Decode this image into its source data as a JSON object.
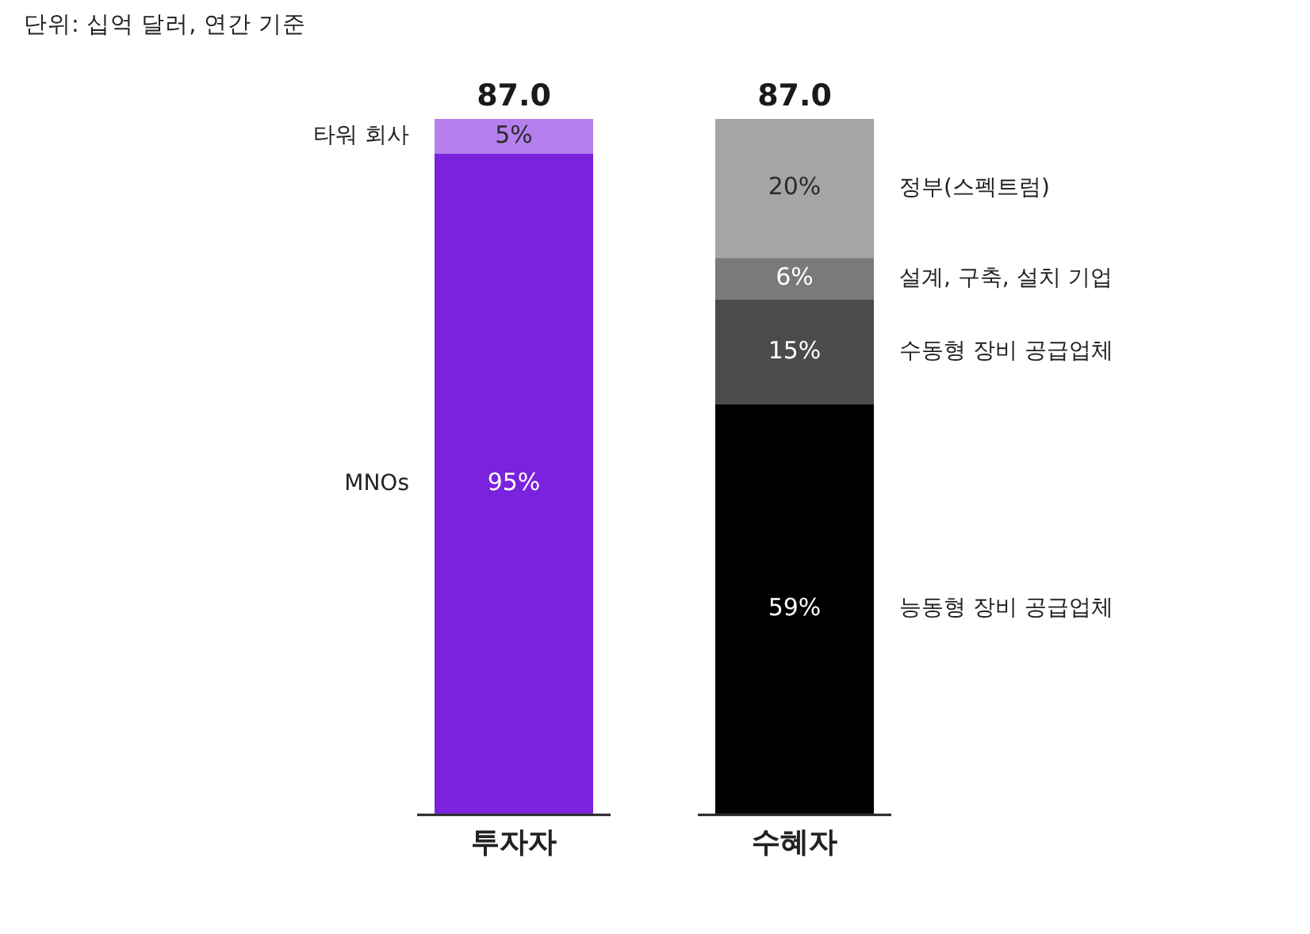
{
  "chart_data": {
    "type": "bar",
    "title": "단위: 십억 달러, 연간 기준",
    "categories": [
      "투자자",
      "수혜자"
    ],
    "stacked": true,
    "series": [
      {
        "name": "MNOs",
        "color": "#7a22dd",
        "values": [
          95,
          null
        ],
        "value_labels": [
          "95%",
          null
        ]
      },
      {
        "name": "타워 회사",
        "color": "#b580ee",
        "values": [
          5,
          null
        ],
        "value_labels": [
          "5%",
          null
        ]
      },
      {
        "name": "능동형 장비 공급업체",
        "color": "#000000",
        "values": [
          null,
          59
        ],
        "value_labels": [
          null,
          "59%"
        ]
      },
      {
        "name": "수동형 장비 공급업체",
        "color": "#4b4b4b",
        "values": [
          null,
          15
        ],
        "value_labels": [
          null,
          "15%"
        ]
      },
      {
        "name": "설계, 구축, 설치 기업",
        "color": "#7a7a7a",
        "values": [
          null,
          6
        ],
        "value_labels": [
          null,
          "6%"
        ]
      },
      {
        "name": "정부(스펙트럼)",
        "color": "#a5a5a5",
        "values": [
          null,
          20
        ],
        "value_labels": [
          null,
          "20%"
        ]
      }
    ],
    "annotations": [
      {
        "text": "87.0",
        "x": "투자자",
        "y": 100
      },
      {
        "text": "87.0",
        "x": "수혜자",
        "y": 100
      }
    ],
    "tick_labels": "x",
    "legend": false,
    "grid": false
  }
}
